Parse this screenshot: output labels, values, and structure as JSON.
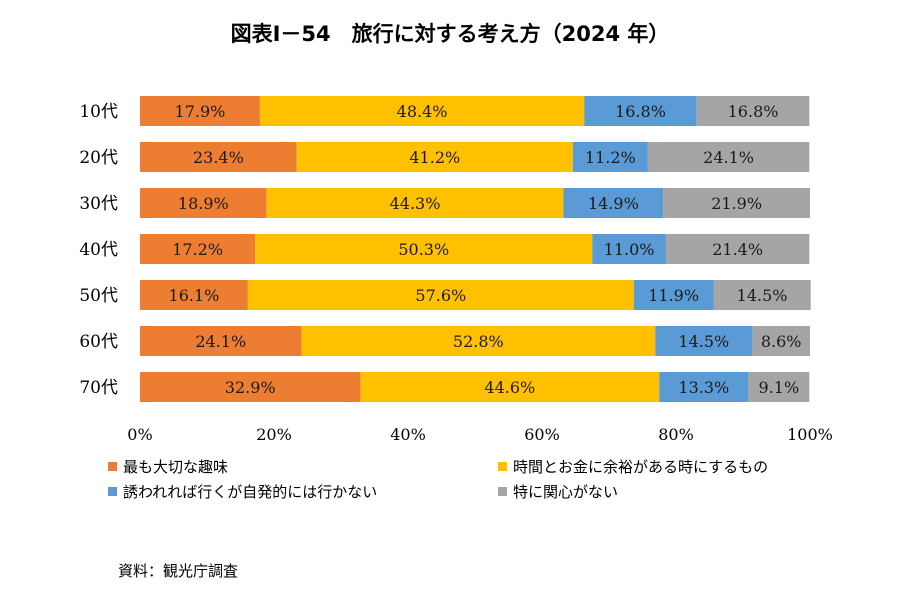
{
  "chart_data": {
    "type": "bar",
    "orientation": "horizontal",
    "stacked": true,
    "title": "図表Ⅰ－54　旅行に対する考え方（2024 年）",
    "categories": [
      "10代",
      "20代",
      "30代",
      "40代",
      "50代",
      "60代",
      "70代"
    ],
    "series": [
      {
        "name": "最も大切な趣味",
        "color": "#ED7D31",
        "values": [
          17.9,
          23.4,
          18.9,
          17.2,
          16.1,
          24.1,
          32.9
        ],
        "labels": [
          "17.9%",
          "23.4%",
          "18.9%",
          "17.2%",
          "16.1%",
          "24.1%",
          "32.9%"
        ]
      },
      {
        "name": "時間とお金に余裕がある時にするもの",
        "color": "#FFC000",
        "values": [
          48.4,
          41.2,
          44.3,
          50.3,
          57.6,
          52.8,
          44.6
        ],
        "labels": [
          "48.4%",
          "41.2%",
          "44.3%",
          "50.3%",
          "57.6%",
          "52.8%",
          "44.6%"
        ]
      },
      {
        "name": "誘われれば行くが自発的には行かない",
        "color": "#5B9BD5",
        "values": [
          16.8,
          11.2,
          14.9,
          11.0,
          11.9,
          14.5,
          13.3
        ],
        "labels": [
          "16.8%",
          "11.2%",
          "14.9%",
          "11.0%",
          "11.9%",
          "14.5%",
          "13.3%"
        ]
      },
      {
        "name": "特に関心がない",
        "color": "#A5A5A5",
        "values": [
          16.8,
          24.1,
          21.9,
          21.4,
          14.5,
          8.6,
          9.1
        ],
        "labels": [
          "16.8%",
          "24.1%",
          "21.9%",
          "21.4%",
          "14.5%",
          "8.6%",
          "9.1%"
        ]
      }
    ],
    "xlim": [
      0,
      100
    ],
    "xticks": [
      "0%",
      "20%",
      "40%",
      "60%",
      "80%",
      "100%"
    ],
    "grid": false,
    "legend_position": "bottom"
  },
  "source": "資料：観光庁調査"
}
